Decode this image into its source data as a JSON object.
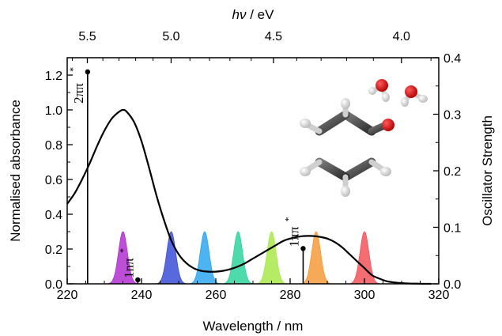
{
  "chart_data": {
    "type": "line",
    "xlabel": "Wavelength / nm",
    "ylabel": "Normalised absorbance",
    "y2label": "Oscillator Strength",
    "top_label_italic": "hν",
    "top_label_rest": " / eV",
    "xlim": [
      220,
      320
    ],
    "ylim": [
      0,
      1.3
    ],
    "y2lim": [
      0,
      0.4
    ],
    "x_ticks": [
      "220",
      "240",
      "260",
      "280",
      "300",
      "320"
    ],
    "y_ticks": [
      "0.0",
      "0.2",
      "0.4",
      "0.6",
      "0.8",
      "1.0",
      "1.2"
    ],
    "y2_ticks": [
      "0.0",
      "0.1",
      "0.2",
      "0.3",
      "0.4"
    ],
    "top_ticks": [
      "5.5",
      "5.0",
      "4.5",
      "4.0"
    ],
    "top_tick_values": [
      5.5,
      5.0,
      4.5,
      4.0
    ],
    "grid": false,
    "absorbance_curve": {
      "x": [
        220,
        222,
        224,
        226,
        228,
        230,
        232,
        234,
        235,
        236,
        238,
        240,
        242,
        244,
        246,
        248,
        250,
        252,
        254,
        256,
        258,
        260,
        262,
        264,
        266,
        268,
        270,
        272,
        274,
        276,
        278,
        280,
        282,
        284,
        286,
        288,
        290,
        292,
        294,
        296,
        298,
        300,
        302,
        304,
        306,
        308,
        310,
        312,
        314,
        316,
        318
      ],
      "y": [
        0.46,
        0.52,
        0.6,
        0.69,
        0.79,
        0.88,
        0.95,
        0.99,
        1.0,
        0.99,
        0.93,
        0.82,
        0.67,
        0.51,
        0.37,
        0.25,
        0.17,
        0.12,
        0.09,
        0.075,
        0.07,
        0.07,
        0.075,
        0.085,
        0.1,
        0.12,
        0.145,
        0.17,
        0.195,
        0.22,
        0.245,
        0.26,
        0.27,
        0.275,
        0.275,
        0.27,
        0.26,
        0.24,
        0.21,
        0.17,
        0.13,
        0.09,
        0.05,
        0.03,
        0.015,
        0.008,
        0.004,
        0.002,
        0.001,
        0.0,
        0.0
      ]
    },
    "transitions": [
      {
        "label": "2ππ",
        "star": "*",
        "x": 225.5,
        "f": 0.375
      },
      {
        "label": "1nπ",
        "star": "*",
        "x": 239.0,
        "f": 0.007
      },
      {
        "label": "1ππ",
        "star": "*",
        "x": 283.5,
        "f": 0.0625
      }
    ],
    "laser_pulses": [
      {
        "center": 235.0,
        "color": "#b12fd1"
      },
      {
        "center": 248.0,
        "color": "#3b4fd8"
      },
      {
        "center": 257.0,
        "color": "#2ea7ee"
      },
      {
        "center": 266.0,
        "color": "#2fd39c"
      },
      {
        "center": 275.0,
        "color": "#a8e84a"
      },
      {
        "center": 287.0,
        "color": "#f59a38"
      },
      {
        "center": 300.0,
        "color": "#f2545a"
      }
    ],
    "pulse_height": 0.3,
    "pulse_width_nm": 1.2
  },
  "molecule": {
    "carbon_color": "#4a4a4a",
    "hydrogen_color": "#dcdcdc",
    "oxygen_color": "#e01010"
  }
}
